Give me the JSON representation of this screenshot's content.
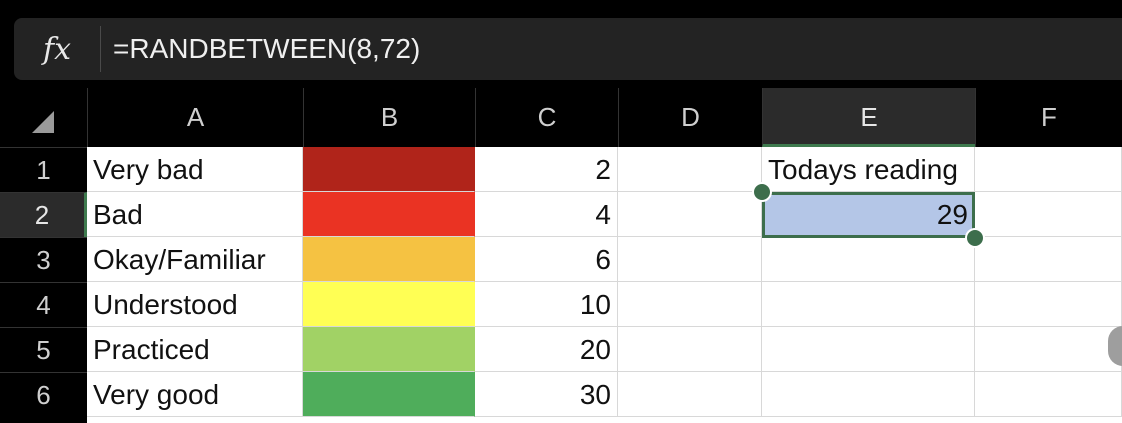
{
  "formula_bar": {
    "fx_label": "fx",
    "formula": "=RANDBETWEEN(8,72)"
  },
  "columns": [
    "A",
    "B",
    "C",
    "D",
    "E",
    "F"
  ],
  "rows": [
    "1",
    "2",
    "3",
    "4",
    "5",
    "6"
  ],
  "selected": {
    "column": "E",
    "row": "2"
  },
  "cells": {
    "A1": "Very bad",
    "A2": "Bad",
    "A3": "Okay/Familiar",
    "A4": "Understood",
    "A5": "Practiced",
    "A6": "Very good",
    "C1": "2",
    "C2": "4",
    "C3": "6",
    "C4": "10",
    "C5": "20",
    "C6": "30",
    "E1": "Todays reading",
    "E2": "29"
  },
  "fills": {
    "B1": "#B0241A",
    "B2": "#EA3323",
    "B3": "#F5C242",
    "B4": "#FFFF54",
    "B5": "#A1D265",
    "B6": "#4FAD5B",
    "E2": "#B4C6E7"
  }
}
